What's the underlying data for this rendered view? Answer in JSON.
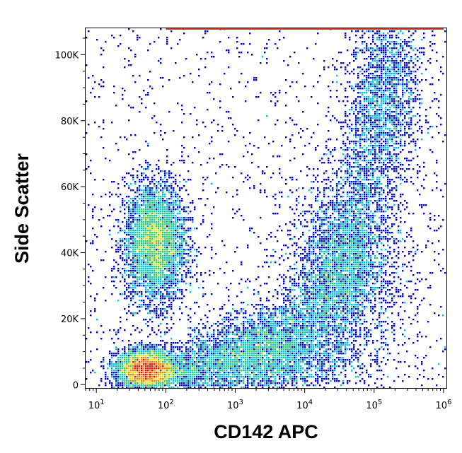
{
  "chart_data": {
    "type": "scatter",
    "subtype": "flow-cytometry-density-dot-plot",
    "title": "",
    "xlabel": "CD142 APC",
    "ylabel": "Side Scatter",
    "x_scale": "log",
    "xlim": [
      7,
      1100000
    ],
    "ylim": [
      -1000,
      108000
    ],
    "x_ticks": [
      {
        "value": 10,
        "base": "10",
        "exp": "1"
      },
      {
        "value": 100,
        "base": "10",
        "exp": "2"
      },
      {
        "value": 1000,
        "base": "10",
        "exp": "3"
      },
      {
        "value": 10000,
        "base": "10",
        "exp": "4"
      },
      {
        "value": 100000,
        "base": "10",
        "exp": "5"
      },
      {
        "value": 1000000,
        "base": "10",
        "exp": "6"
      }
    ],
    "y_ticks": [
      {
        "value": 0,
        "label": "0"
      },
      {
        "value": 20000,
        "label": "20K"
      },
      {
        "value": 40000,
        "label": "40K"
      },
      {
        "value": 60000,
        "label": "60K"
      },
      {
        "value": 80000,
        "label": "80K"
      },
      {
        "value": 100000,
        "label": "100K"
      }
    ],
    "grid": false,
    "legend": "none",
    "density_colormap": [
      "#0000cc",
      "#00c0e8",
      "#30d060",
      "#e8e020",
      "#ff8000",
      "#e01010"
    ],
    "populations": [
      {
        "name": "",
        "x_center": 70,
        "y_center": 43000,
        "x_spread_decades": 0.22,
        "y_spread": 9000,
        "relative_density": 1.0
      },
      {
        "name": "",
        "x_center": 50,
        "y_center": 4500,
        "x_spread_decades": 0.2,
        "y_spread": 3000,
        "relative_density": 0.9
      },
      {
        "name": "",
        "x_center": 40000,
        "y_center": 35000,
        "x_spread_decades": 0.45,
        "y_spread": 14000,
        "relative_density": 0.55
      },
      {
        "name": "",
        "x_center": 3000,
        "y_center": 9000,
        "x_spread_decades": 0.6,
        "y_spread": 6000,
        "relative_density": 0.6
      },
      {
        "name": "",
        "x_center": 150000,
        "y_center": 85000,
        "x_spread_decades": 0.3,
        "y_spread": 15000,
        "relative_density": 0.25
      }
    ],
    "saturation_band": {
      "y": 108000,
      "x_range": [
        100,
        1000000
      ]
    }
  }
}
